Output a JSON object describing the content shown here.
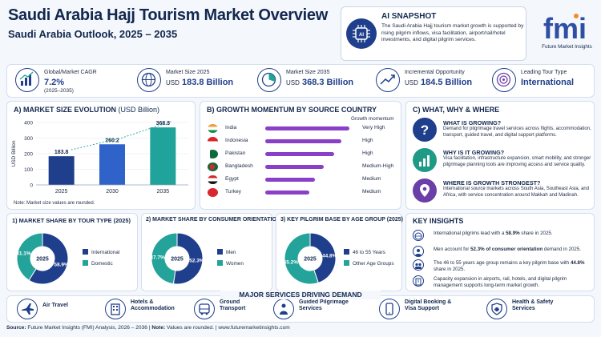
{
  "header": {
    "title": "Saudi Arabia Hajj Tourism Market Overview",
    "subtitle": "Saudi Arabia Outlook, 2025 – 2035"
  },
  "snapshot": {
    "title": "AI SNAPSHOT",
    "text": "The Saudi Arabia Hajj tourism market growth is supported by rising pilgrim inflows, visa facilitation, airport/rail/hotel investments, and digital pilgrim services.",
    "icon": "ai-chip-icon"
  },
  "logo": {
    "mark": "fmi",
    "name": "Future Market Insights"
  },
  "kpis": [
    {
      "label": "Global/Market CAGR",
      "value": "7.2%",
      "sub": "(2025–2035)",
      "icon": "growth-chart-icon"
    },
    {
      "label": "Market Size 2025",
      "prefix": "USD",
      "value": "183.8 Billion",
      "icon": "globe-icon"
    },
    {
      "label": "Market Size 2035",
      "prefix": "USD",
      "value": "368.3 Billion",
      "icon": "pie-chart-icon"
    },
    {
      "label": "Incremental Opportunity",
      "prefix": "USD",
      "value": "184.5 Billion",
      "icon": "trend-up-icon"
    },
    {
      "label": "Leading Tour Type",
      "value": "International",
      "icon": "target-icon"
    }
  ],
  "market_size": {
    "heading": "A) MARKET SIZE EVOLUTION",
    "heading_unit": "(USD Billion)",
    "note": "Note: Market size values are rounded."
  },
  "growth": {
    "heading": "B) GROWTH MOMENTUM BY SOURCE COUNTRY",
    "col_label": "Growth momentum",
    "rows": [
      {
        "country": "India",
        "level": "Very High",
        "score": 0.95
      },
      {
        "country": "Indonesia",
        "level": "High",
        "score": 0.86
      },
      {
        "country": "Pakistan",
        "level": "High",
        "score": 0.78
      },
      {
        "country": "Bangladesh",
        "level": "Medium-High",
        "score": 0.66
      },
      {
        "country": "Egypt",
        "level": "Medium",
        "score": 0.56
      },
      {
        "country": "Turkey",
        "level": "Medium",
        "score": 0.5
      }
    ]
  },
  "what_why": {
    "heading": "C) WHAT, WHY & WHERE",
    "items": [
      {
        "title": "WHAT IS GROWING?",
        "text": "Demand for pilgrimage travel services across flights, accommodation, transport, guided travel, and digital support platforms.",
        "icon": "question-icon",
        "color": "#1f3f8c"
      },
      {
        "title": "WHY IS IT GROWING?",
        "text": "Visa facilitation, infrastructure expansion, smart mobility, and stronger pilgrimage planning tools are improving access and service quality.",
        "icon": "bar-growth-icon",
        "color": "#1f9a86"
      },
      {
        "title": "WHERE IS GROWTH STRONGEST?",
        "text": "International source markets across South Asia, Southeast Asia, and Africa, with service concentration around Makkah and Madinah.",
        "icon": "location-pin-icon",
        "color": "#6b3fa8"
      }
    ]
  },
  "donuts": [
    {
      "heading": "1) MARKET SHARE BY TOUR TYPE (2025)",
      "center": "2025",
      "slices": [
        {
          "name": "International",
          "label": "58.9%",
          "value": 58.9,
          "color": "#1f3f8c"
        },
        {
          "name": "Domestic",
          "label": "41.1%",
          "value": 41.1,
          "color": "#23a39a"
        }
      ]
    },
    {
      "heading": "2) MARKET SHARE BY CONSUMER ORIENTATION (2025)",
      "center": "2025",
      "slices": [
        {
          "name": "Men",
          "label": "52.3%",
          "value": 52.3,
          "color": "#1f3f8c"
        },
        {
          "name": "Women",
          "label": "47.7%",
          "value": 47.7,
          "color": "#23a39a"
        }
      ]
    },
    {
      "heading": "3) KEY PILGRIM BASE BY AGE GROUP (2025)",
      "center": "2025",
      "slices": [
        {
          "name": "46 to 55 Years",
          "label": "44.8%",
          "value": 44.8,
          "color": "#1f3f8c"
        },
        {
          "name": "Other Age Groups",
          "label": "55.2%",
          "value": 55.2,
          "color": "#23a39a"
        }
      ]
    }
  ],
  "insights": {
    "heading": "KEY INSIGHTS",
    "items": [
      {
        "pre": "International pilgrims lead with a ",
        "bold": "58.9%",
        "post": " share in 2025.",
        "icon": "globe-icon"
      },
      {
        "pre": "Men account for ",
        "bold": "52.3% of consumer orientation",
        "post": " demand in 2025.",
        "icon": "person-icon"
      },
      {
        "pre": "The 46 to 55 years age group remains a key pilgrim base with ",
        "bold": "44.8%",
        "post": " share in 2025.",
        "icon": "group-icon"
      },
      {
        "pre": "Capacity expansion in airports, rail, hotels, and digital pilgrim management supports long-term market growth.",
        "bold": "",
        "post": "",
        "icon": "building-icon"
      }
    ]
  },
  "services": {
    "heading": "MAJOR SERVICES DRIVING DEMAND",
    "items": [
      {
        "label": "Air Travel",
        "icon": "airplane-icon"
      },
      {
        "label": "Hotels &\nAccommodation",
        "icon": "hotel-icon"
      },
      {
        "label": "Ground\nTransport",
        "icon": "bus-icon"
      },
      {
        "label": "Guided Pilgrimage\nServices",
        "icon": "guide-icon"
      },
      {
        "label": "Digital Booking &\nVisa Support",
        "icon": "mobile-icon"
      },
      {
        "label": "Health & Safety\nServices",
        "icon": "health-icon"
      }
    ]
  },
  "footer": {
    "source_label": "Source:",
    "source": "Future Market Insights (FMI) Analysis, 2026 – 2036",
    "note_label": "Note:",
    "note": "Values are rounded.",
    "url": "www.futuremarketinsights.com"
  },
  "chart_data": {
    "type": "bar",
    "title": "A) MARKET SIZE EVOLUTION (USD Billion)",
    "ylabel": "USD Billion",
    "categories": [
      "2025",
      "2030",
      "2035"
    ],
    "values": [
      183.8,
      260.2,
      368.3
    ],
    "ylim": [
      0,
      400
    ],
    "yticks": [
      0,
      100,
      200,
      300,
      400
    ],
    "grid": true,
    "colors": [
      "#1f3f8c",
      "#2f63c9",
      "#1fa39a"
    ]
  }
}
